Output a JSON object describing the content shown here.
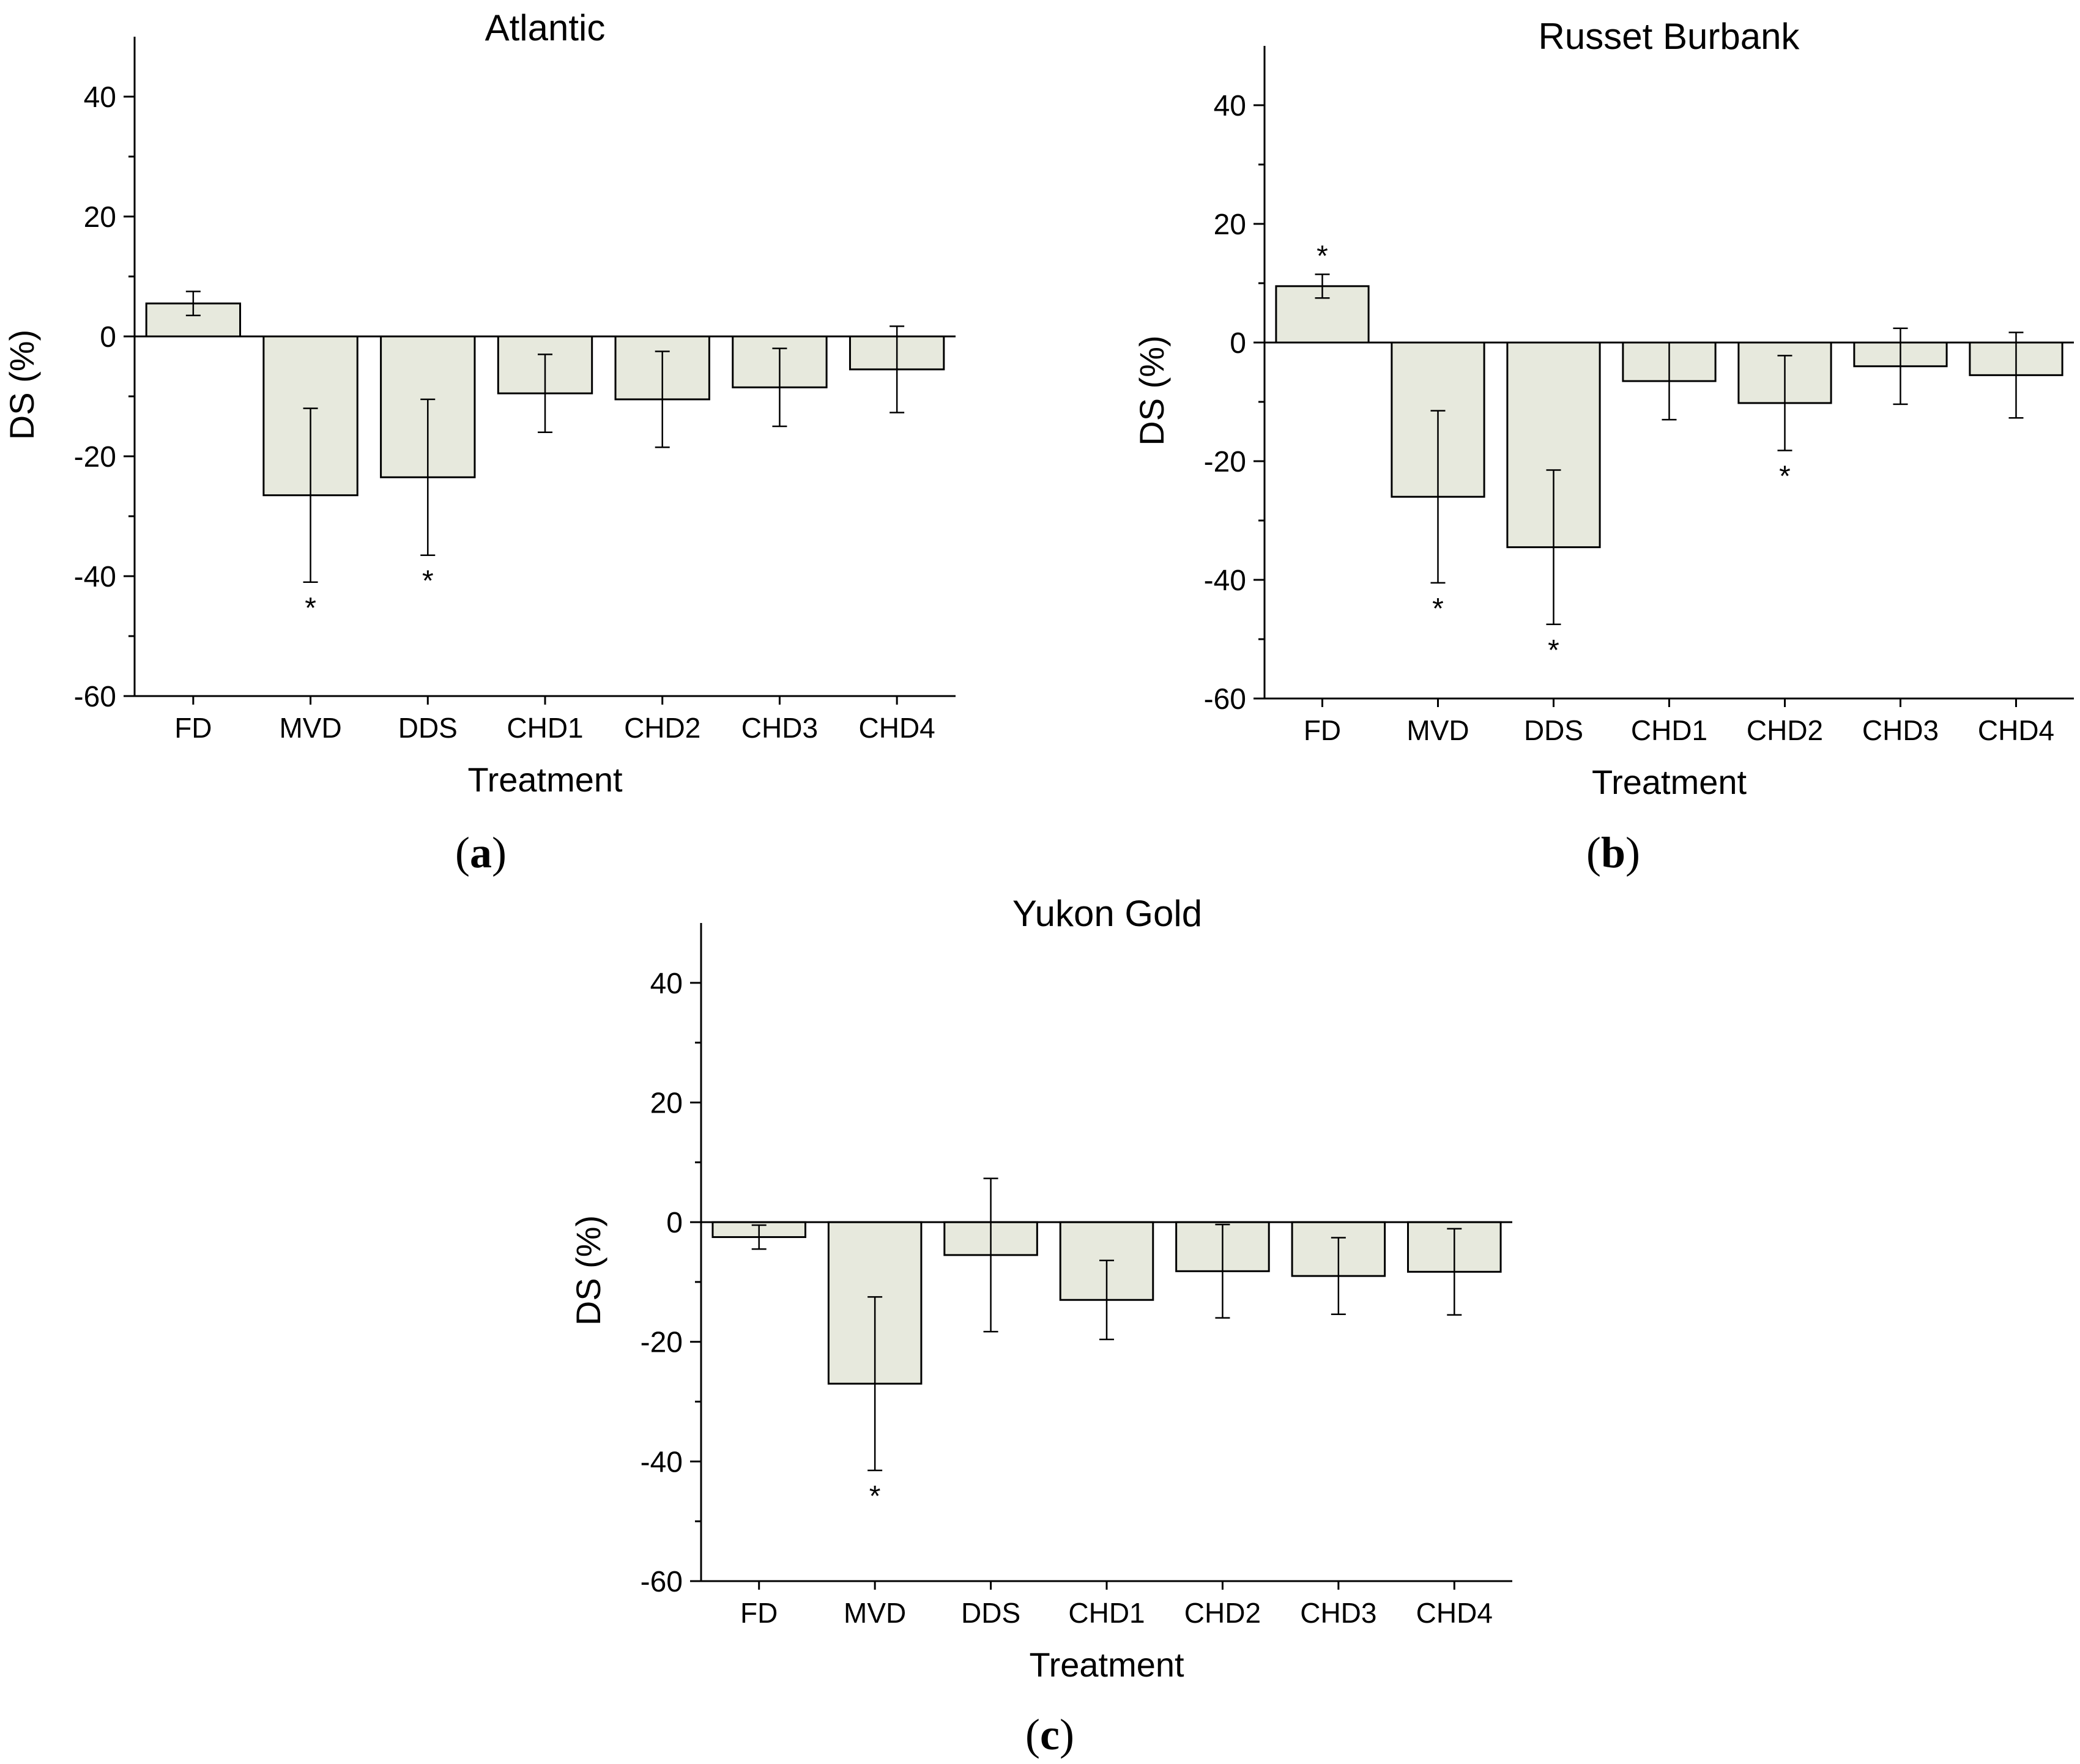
{
  "chart_data": [
    {
      "type": "bar",
      "panel_label": "(a)",
      "panel_letter": "a",
      "title": "Atlantic",
      "xlabel": "Treatment",
      "ylabel": "DS (%)",
      "ylim": [
        -60,
        50
      ],
      "yticks": [
        "40",
        "20",
        "0",
        "-20",
        "-40",
        "-60"
      ],
      "grid": false,
      "categories": [
        "FD",
        "MVD",
        "DDS",
        "CHD1",
        "CHD2",
        "CHD3",
        "CHD4"
      ],
      "values": [
        5.5,
        -26.5,
        -23.5,
        -9.5,
        -10.5,
        -8.5,
        -5.5
      ],
      "errors": [
        2.0,
        14.5,
        13.0,
        6.5,
        8.0,
        6.5,
        7.2
      ],
      "significant": [
        false,
        true,
        true,
        false,
        false,
        false,
        false
      ],
      "significance_marker": "*"
    },
    {
      "type": "bar",
      "panel_label": "(b)",
      "panel_letter": "b",
      "title": "Russet Burbank",
      "xlabel": "Treatment",
      "ylabel": "DS (%)",
      "ylim": [
        -60,
        50
      ],
      "yticks": [
        "40",
        "20",
        "0",
        "-20",
        "-40",
        "-60"
      ],
      "grid": false,
      "categories": [
        "FD",
        "MVD",
        "DDS",
        "CHD1",
        "CHD2",
        "CHD3",
        "CHD4"
      ],
      "values": [
        9.5,
        -26.0,
        -34.5,
        -6.5,
        -10.2,
        -4.0,
        -5.5
      ],
      "errors": [
        2.0,
        14.5,
        13.0,
        6.5,
        8.0,
        6.4,
        7.2
      ],
      "significant": [
        true,
        true,
        true,
        false,
        true,
        false,
        false
      ],
      "significance_marker": "*"
    },
    {
      "type": "bar",
      "panel_label": "(c)",
      "panel_letter": "c",
      "title": "Yukon Gold",
      "xlabel": "Treatment",
      "ylabel": "DS (%)",
      "ylim": [
        -60,
        50
      ],
      "yticks": [
        "40",
        "20",
        "0",
        "-20",
        "-40",
        "-60"
      ],
      "grid": false,
      "categories": [
        "FD",
        "MVD",
        "DDS",
        "CHD1",
        "CHD2",
        "CHD3",
        "CHD4"
      ],
      "values": [
        -2.5,
        -27.0,
        -5.5,
        -13.0,
        -8.2,
        -9.0,
        -8.3
      ],
      "errors": [
        2.0,
        14.5,
        12.8,
        6.6,
        7.8,
        6.4,
        7.2
      ],
      "significant": [
        false,
        true,
        false,
        false,
        false,
        false,
        false
      ],
      "significance_marker": "*"
    }
  ],
  "colors": {
    "bar_fill": "#e7e9dd",
    "bar_stroke": "#000000",
    "axis": "#000000",
    "text": "#000000"
  }
}
